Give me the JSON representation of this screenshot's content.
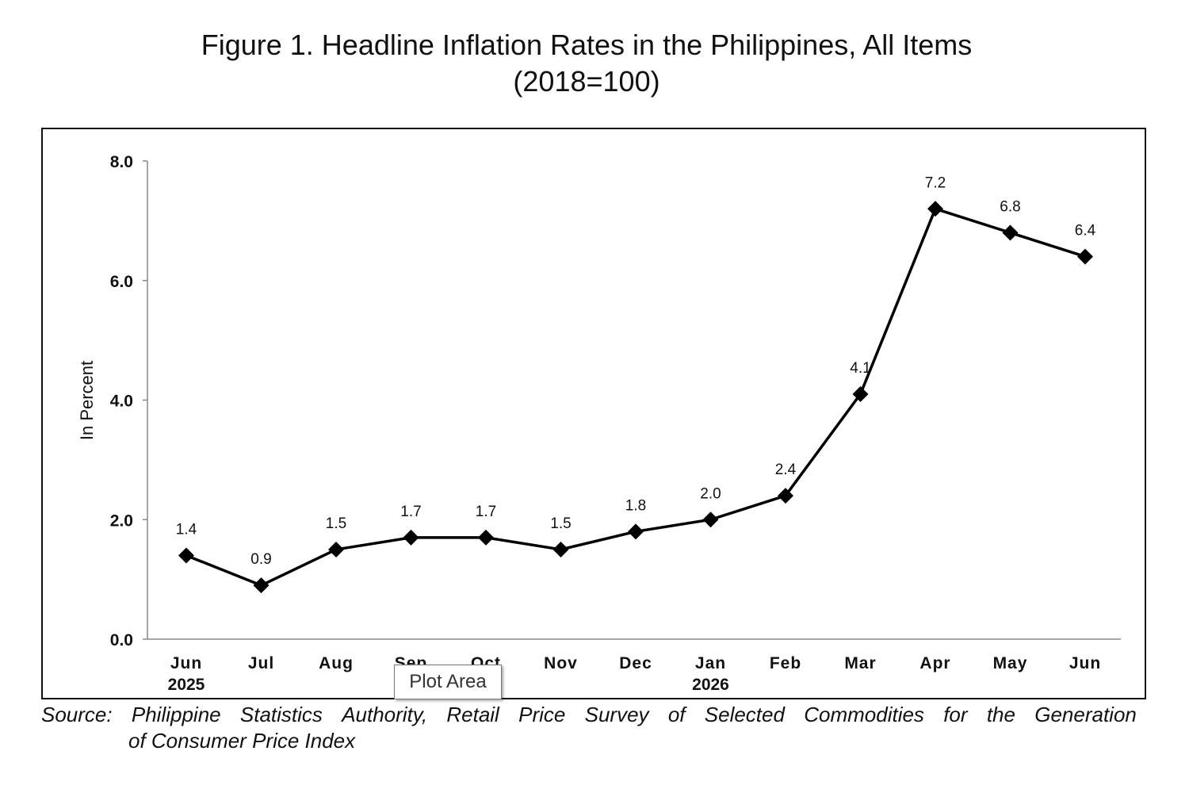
{
  "figure": {
    "title_line1": "Figure 1. Headline Inflation Rates in the Philippines, All Items",
    "title_line2": "(2018=100)"
  },
  "source": {
    "line1_words": [
      "Source:",
      "Philippine",
      "Statistics",
      "Authority,",
      "Retail",
      "Price",
      "Survey",
      "of",
      "Selected",
      "Commodities",
      "for",
      "the",
      "Generation"
    ],
    "line2": "of Consumer Price Index"
  },
  "tooltip": {
    "text": "Plot Area"
  },
  "chart_data": {
    "type": "line",
    "title": "Figure 1. Headline Inflation Rates in the Philippines, All Items (2018=100)",
    "ylabel": "In Percent",
    "xlabel": "",
    "ylim": [
      0,
      8
    ],
    "yticks": [
      "0.0",
      "2.0",
      "4.0",
      "6.0",
      "8.0"
    ],
    "categories": [
      "Jun",
      "Jul",
      "Aug",
      "Sep",
      "Oct",
      "Nov",
      "Dec",
      "Jan",
      "Feb",
      "Mar",
      "Apr",
      "May",
      "Jun"
    ],
    "category_years": [
      "2025",
      "",
      "",
      "",
      "",
      "",
      "",
      "2026",
      "",
      "",
      "",
      "",
      ""
    ],
    "values": [
      1.4,
      0.9,
      1.5,
      1.7,
      1.7,
      1.5,
      1.8,
      2.0,
      2.4,
      4.1,
      7.2,
      6.8,
      6.4
    ],
    "value_labels": [
      "1.4",
      "0.9",
      "1.5",
      "1.7",
      "1.7",
      "1.5",
      "1.8",
      "2.0",
      "2.4",
      "4.1",
      "7.2",
      "6.8",
      "6.4"
    ],
    "marker": "diamond",
    "grid": false,
    "legend": "none",
    "line_color": "#000000"
  }
}
